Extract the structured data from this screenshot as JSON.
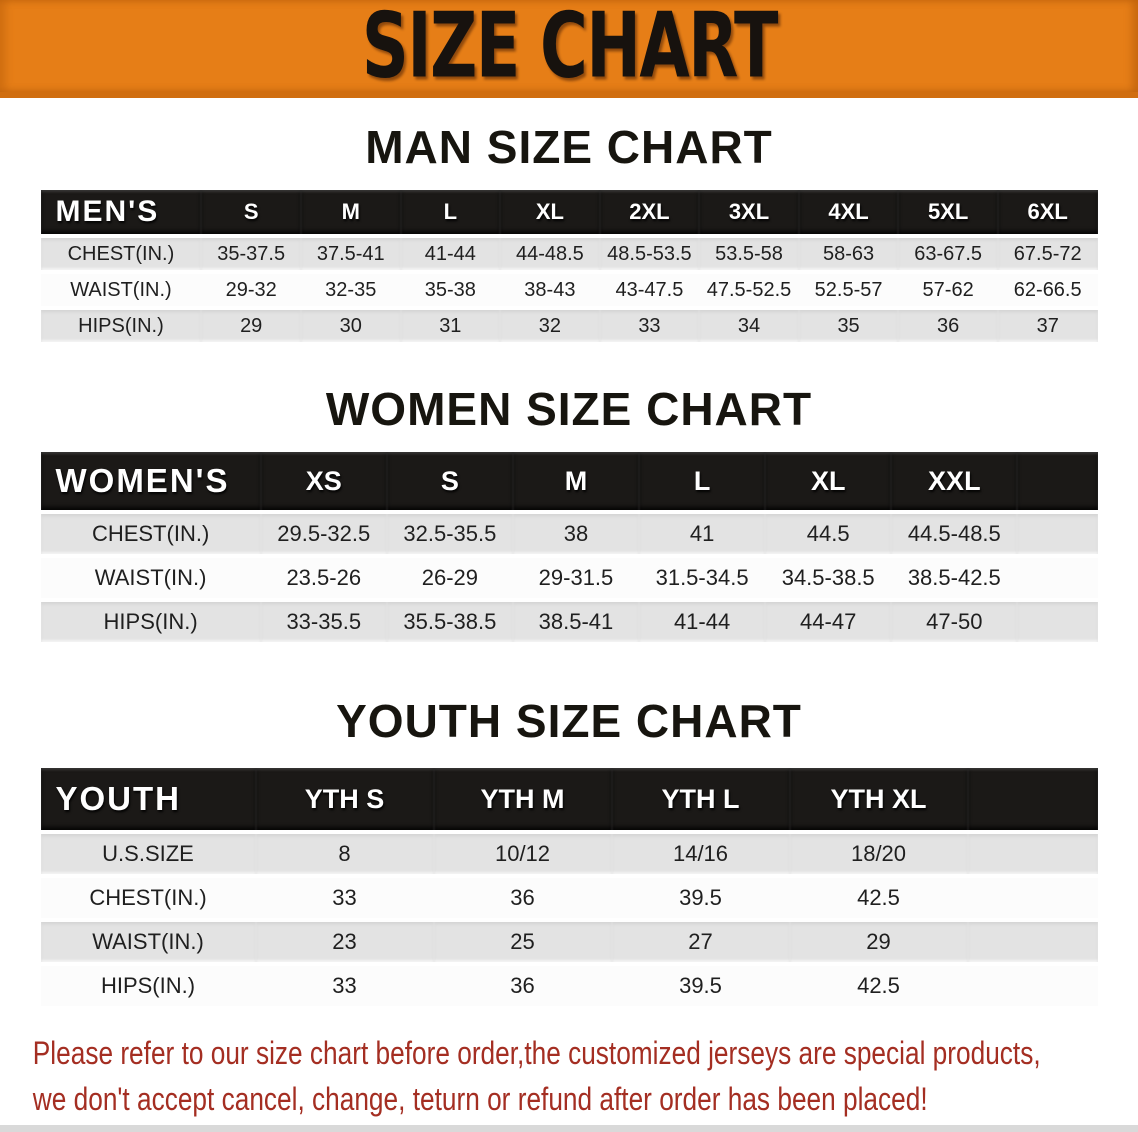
{
  "banner": {
    "title": "SIZE CHART",
    "bg_color": "#E67E17",
    "text_color": "#17120E"
  },
  "colors": {
    "table_header_bg": "#1B1917",
    "row_gray": "#E3E3E3",
    "row_white": "#FCFCFC",
    "disclaimer_red": "#A42E22"
  },
  "sections": [
    {
      "heading": "MAN SIZE CHART",
      "table": {
        "header_label": "MEN'S",
        "sizes": [
          "S",
          "M",
          "L",
          "XL",
          "2XL",
          "3XL",
          "4XL",
          "5XL",
          "6XL"
        ],
        "rows": [
          {
            "label": "CHEST(IN.)",
            "values": [
              "35-37.5",
              "37.5-41",
              "41-44",
              "44-48.5",
              "48.5-53.5",
              "53.5-58",
              "58-63",
              "63-67.5",
              "67.5-72"
            ]
          },
          {
            "label": "WAIST(IN.)",
            "values": [
              "29-32",
              "32-35",
              "35-38",
              "38-43",
              "43-47.5",
              "47.5-52.5",
              "52.5-57",
              "57-62",
              "62-66.5"
            ]
          },
          {
            "label": "HIPS(IN.)",
            "values": [
              "29",
              "30",
              "31",
              "32",
              "33",
              "34",
              "35",
              "36",
              "37"
            ]
          }
        ]
      }
    },
    {
      "heading": "WOMEN SIZE CHART",
      "table": {
        "header_label": "WOMEN'S",
        "sizes": [
          "XS",
          "S",
          "M",
          "L",
          "XL",
          "XXL"
        ],
        "rows": [
          {
            "label": "CHEST(IN.)",
            "values": [
              "29.5-32.5",
              "32.5-35.5",
              "38",
              "41",
              "44.5",
              "44.5-48.5"
            ]
          },
          {
            "label": "WAIST(IN.)",
            "values": [
              "23.5-26",
              "26-29",
              "29-31.5",
              "31.5-34.5",
              "34.5-38.5",
              "38.5-42.5"
            ]
          },
          {
            "label": "HIPS(IN.)",
            "values": [
              "33-35.5",
              "35.5-38.5",
              "38.5-41",
              "41-44",
              "44-47",
              "47-50"
            ]
          }
        ]
      }
    },
    {
      "heading": "YOUTH SIZE CHART",
      "table": {
        "header_label": "YOUTH",
        "sizes": [
          "YTH S",
          "YTH M",
          "YTH L",
          "YTH XL"
        ],
        "rows": [
          {
            "label": "U.S.SIZE",
            "values": [
              "8",
              "10/12",
              "14/16",
              "18/20"
            ]
          },
          {
            "label": "CHEST(IN.)",
            "values": [
              "33",
              "36",
              "39.5",
              "42.5"
            ]
          },
          {
            "label": "WAIST(IN.)",
            "values": [
              "23",
              "25",
              "27",
              "29"
            ]
          },
          {
            "label": "HIPS(IN.)",
            "values": [
              "33",
              "36",
              "39.5",
              "42.5"
            ]
          }
        ]
      }
    }
  ],
  "disclaimer": {
    "line1": "Please refer to our size chart before order,the customized jerseys are special products,",
    "line2": "we don't accept cancel, change, teturn or refund after order has been placed!"
  }
}
